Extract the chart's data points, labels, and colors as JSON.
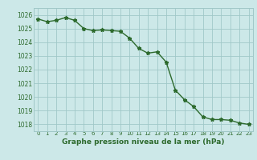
{
  "x": [
    0,
    1,
    2,
    3,
    4,
    5,
    6,
    7,
    8,
    9,
    10,
    11,
    12,
    13,
    14,
    15,
    16,
    17,
    18,
    19,
    20,
    21,
    22,
    23
  ],
  "y": [
    1025.7,
    1025.5,
    1025.6,
    1025.8,
    1025.6,
    1025.0,
    1024.85,
    1024.9,
    1024.85,
    1024.8,
    1024.3,
    1023.55,
    1023.2,
    1023.3,
    1022.55,
    1020.5,
    1019.8,
    1019.3,
    1018.55,
    1018.35,
    1018.35,
    1018.3,
    1018.1,
    1018.0
  ],
  "line_color": "#2d6a2d",
  "marker": "*",
  "marker_color": "#2d6a2d",
  "bg_color": "#cce8e8",
  "grid_color": "#a0c8c8",
  "xlabel": "Graphe pression niveau de la mer (hPa)",
  "xlabel_color": "#2d6a2d",
  "tick_color": "#2d6a2d",
  "ylim": [
    1017.5,
    1026.5
  ],
  "yticks": [
    1018,
    1019,
    1020,
    1021,
    1022,
    1023,
    1024,
    1025,
    1026
  ],
  "xticks": [
    0,
    1,
    2,
    3,
    4,
    5,
    6,
    7,
    8,
    9,
    10,
    11,
    12,
    13,
    14,
    15,
    16,
    17,
    18,
    19,
    20,
    21,
    22,
    23
  ],
  "xtick_labels": [
    "0",
    "1",
    "2",
    "3",
    "4",
    "5",
    "6",
    "7",
    "8",
    "9",
    "10",
    "11",
    "12",
    "13",
    "14",
    "15",
    "16",
    "17",
    "18",
    "19",
    "20",
    "21",
    "22",
    "23"
  ],
  "line_width": 1.0,
  "marker_size": 3.5
}
